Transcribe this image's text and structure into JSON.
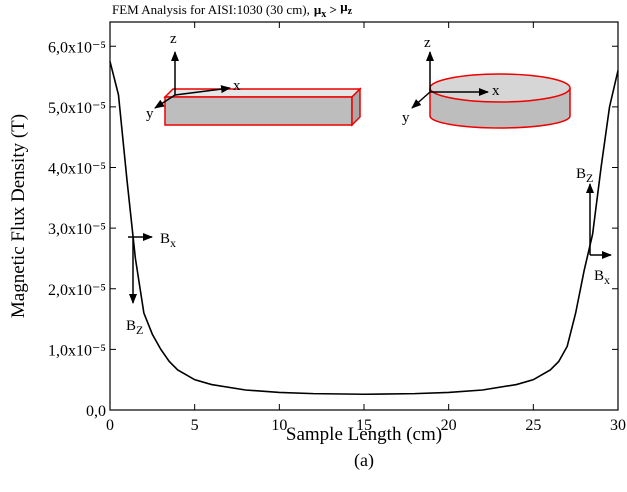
{
  "chart_data": {
    "type": "line",
    "title": "FEM Analysis for AISI:1030 (30 cm),",
    "title_condition": [
      "μ",
      "x",
      " > ",
      "μ",
      "z"
    ],
    "x_label": "Sample Length (cm)",
    "y_label": "Magnetic Flux Density (T)",
    "caption": "(a)",
    "x": [
      0,
      0.5,
      1,
      1.5,
      2,
      2.5,
      3,
      3.5,
      4,
      5,
      6,
      8,
      10,
      12,
      15,
      18,
      20,
      22,
      24,
      25,
      26,
      26.5,
      27,
      27.5,
      28,
      28.5,
      29,
      29.5,
      30
    ],
    "series": [
      {
        "name": "B",
        "color": "#000000",
        "values": [
          5.75e-05,
          5.2e-05,
          3.8e-05,
          2.5e-05,
          1.6e-05,
          1.25e-05,
          1e-05,
          8e-06,
          6.6e-06,
          5e-06,
          4.2e-06,
          3.3e-06,
          2.9e-06,
          2.7e-06,
          2.6e-06,
          2.7e-06,
          2.9e-06,
          3.3e-06,
          4.2e-06,
          5e-06,
          6.6e-06,
          8e-06,
          1.05e-05,
          1.6e-05,
          2.3e-05,
          2.9e-05,
          4e-05,
          5e-05,
          5.6e-05
        ]
      }
    ],
    "xlim": [
      0,
      30
    ],
    "ylim": [
      0,
      6.4e-05
    ],
    "xticks": [
      0,
      5,
      10,
      15,
      20,
      25,
      30
    ],
    "yticks": [
      {
        "value": 0,
        "label": "0,0"
      },
      {
        "value": 1e-05,
        "label": "1,0x10⁻⁵"
      },
      {
        "value": 2e-05,
        "label": "2,0x10⁻⁵"
      },
      {
        "value": 3e-05,
        "label": "3,0x10⁻⁵"
      },
      {
        "value": 4e-05,
        "label": "4,0x10⁻⁵"
      },
      {
        "value": 5e-05,
        "label": "5,0x10⁻⁵"
      },
      {
        "value": 6e-05,
        "label": "6,0x10⁻⁵"
      }
    ],
    "inset_axis_labels": [
      "z",
      "x",
      "y",
      "z",
      "x",
      "y"
    ],
    "field_labels": [
      {
        "text": "B",
        "sub": "x"
      },
      {
        "text": "B",
        "sub": "Z"
      },
      {
        "text": "B",
        "sub": "Z"
      },
      {
        "text": "B",
        "sub": "x"
      }
    ]
  }
}
